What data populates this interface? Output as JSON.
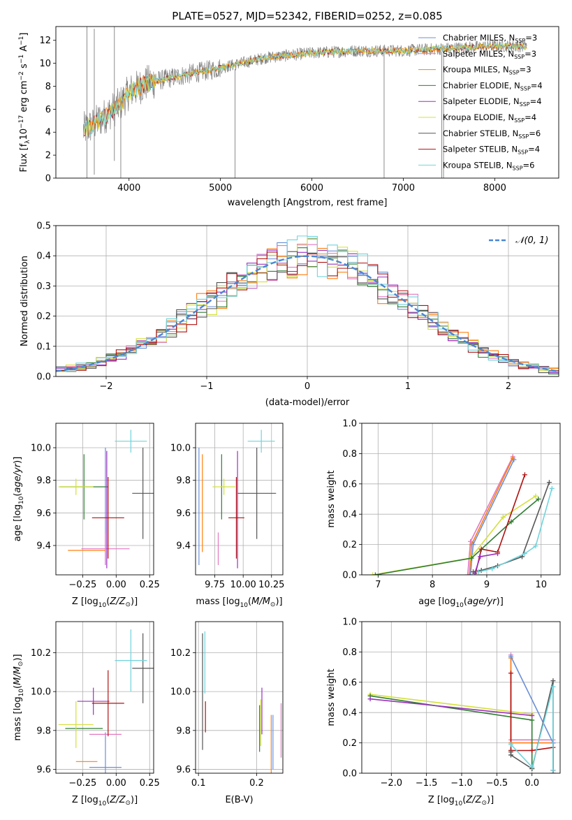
{
  "figure_title": "PLATE=0527, MJD=52342, FIBERID=0252, z=0.085",
  "colors": {
    "Chabrier MILES": "#6b8fd6",
    "Salpeter MILES": "#e377c2",
    "Kroupa MILES": "#ff7f0e",
    "Chabrier ELODIE": "#2f7d32",
    "Salpeter ELODIE": "#9b30c0",
    "Kroupa ELODIE": "#d4e03a",
    "Chabrier STELIB": "#555555",
    "Salpeter STELIB": "#b01010",
    "Kroupa STELIB": "#70d4dc",
    "data": "#7f7f7f",
    "normal": "#4a86d4"
  },
  "chart_data": [
    {
      "id": "spectrum",
      "type": "line",
      "title": "PLATE=0527, MJD=52342, FIBERID=0252, z=0.085",
      "xlabel": "wavelength [Angstrom, rest frame]",
      "ylabel": "Flux [f_λ 10^-17 erg cm^-2 s^-1 A^-1]",
      "xlim": [
        3200,
        8700
      ],
      "ylim": [
        0,
        13.2
      ],
      "xticks": [
        "4000",
        "5000",
        "6000",
        "7000",
        "8000"
      ],
      "yticks": [
        "0",
        "2",
        "4",
        "6",
        "8",
        "10",
        "12"
      ],
      "grid": false,
      "legend_position": "upper-right",
      "legend": [
        {
          "model": "Chabrier MILES",
          "n": "3"
        },
        {
          "model": "Salpeter MILES",
          "n": "3"
        },
        {
          "model": "Kroupa MILES",
          "n": "3"
        },
        {
          "model": "Chabrier ELODIE",
          "n": "4"
        },
        {
          "model": "Salpeter ELODIE",
          "n": "4"
        },
        {
          "model": "Kroupa ELODIE",
          "n": "4"
        },
        {
          "model": "Chabrier STELIB",
          "n": "6"
        },
        {
          "model": "Salpeter STELIB",
          "n": "4"
        },
        {
          "model": "Kroupa STELIB",
          "n": "6"
        }
      ],
      "continuum": {
        "x": [
          3500,
          3600,
          3700,
          3800,
          3900,
          4000,
          4200,
          4500,
          5000,
          5500,
          6000,
          6500,
          7000,
          7500,
          8000,
          8300
        ],
        "y": [
          4.2,
          4.6,
          5.2,
          5.8,
          6.4,
          7.5,
          8.3,
          8.8,
          9.6,
          10.5,
          10.9,
          11.1,
          11.1,
          11.3,
          11.5,
          11.5
        ]
      },
      "spikes": [
        {
          "x": 3540,
          "y0": 0,
          "y1": 13.2
        },
        {
          "x": 3620,
          "y0": 0.3,
          "y1": 13.0
        },
        {
          "x": 3840,
          "y0": 1.5,
          "y1": 13.2
        },
        {
          "x": 5160,
          "y0": 0,
          "y1": 9.5
        },
        {
          "x": 6790,
          "y0": 0,
          "y1": 11.0
        },
        {
          "x": 7420,
          "y0": 0,
          "y1": 11.0
        },
        {
          "x": 7440,
          "y0": 0,
          "y1": 11.3
        },
        {
          "x": 3910,
          "y0": 0,
          "y1": 6.2
        }
      ]
    },
    {
      "id": "residual_hist",
      "type": "histogram",
      "xlabel": "(data-model)/error",
      "ylabel": "Normed distribution",
      "xlim": [
        -2.5,
        2.5
      ],
      "ylim": [
        0,
        0.5
      ],
      "xticks": [
        "−2",
        "−1",
        "0",
        "1",
        "2"
      ],
      "yticks": [
        "0.0",
        "0.1",
        "0.2",
        "0.3",
        "0.4",
        "0.5"
      ],
      "grid": true,
      "legend_position": "upper-right",
      "legend": "𝒩(0, 1)",
      "bins": {
        "start": -2.5,
        "width": 0.1
      }
    },
    {
      "id": "age_vs_Z",
      "type": "errorbar",
      "xlabel": "Z [log10(Z/Z⊙)]",
      "ylabel": "age [log10(age/yr)]",
      "xlim": [
        -0.45,
        0.28
      ],
      "ylim": [
        9.22,
        10.15
      ],
      "xticks": [
        "−0.25",
        "0.00",
        "0.25"
      ],
      "yticks": [
        "9.4",
        "9.6",
        "9.8",
        "10.0"
      ],
      "grid": true,
      "points": [
        {
          "model": "Chabrier MILES",
          "x": -0.08,
          "xerr": 0.0,
          "y": 9.64,
          "yerr": 0.36
        },
        {
          "model": "Salpeter MILES",
          "x": -0.08,
          "xerr": 0.18,
          "y": 9.38,
          "yerr": 0.1
        },
        {
          "model": "Kroupa MILES",
          "x": -0.22,
          "xerr": 0.14,
          "y": 9.37,
          "yerr": 0.0
        },
        {
          "model": "Chabrier ELODIE",
          "x": -0.24,
          "xerr": 0.18,
          "y": 9.76,
          "yerr": 0.2
        },
        {
          "model": "Salpeter ELODIE",
          "x": -0.07,
          "xerr": 0.0,
          "y": 9.62,
          "yerr": 0.36
        },
        {
          "model": "Kroupa ELODIE",
          "x": -0.3,
          "xerr": 0.13,
          "y": 9.76,
          "yerr": 0.05
        },
        {
          "model": "Chabrier STELIB",
          "x": 0.2,
          "xerr": 0.08,
          "y": 9.72,
          "yerr": 0.28
        },
        {
          "model": "Salpeter STELIB",
          "x": -0.06,
          "xerr": 0.12,
          "y": 9.57,
          "yerr": 0.25
        },
        {
          "model": "Kroupa STELIB",
          "x": 0.11,
          "xerr": 0.12,
          "y": 10.04,
          "yerr": 0.07
        }
      ]
    },
    {
      "id": "age_vs_mass",
      "type": "errorbar",
      "xlabel": "mass [log10(M/M⊙)]",
      "ylabel": "",
      "xlim": [
        9.58,
        10.35
      ],
      "ylim": [
        9.22,
        10.15
      ],
      "xticks": [
        "9.75",
        "10.00",
        "10.25"
      ],
      "yticks": [
        "9.4",
        "9.6",
        "9.8",
        "10.0"
      ],
      "grid": true,
      "points": [
        {
          "model": "Chabrier MILES",
          "x": 9.61,
          "xerr": 0.0,
          "y": 9.64,
          "yerr": 0.36
        },
        {
          "model": "Salpeter MILES",
          "x": 9.78,
          "xerr": 0.0,
          "y": 9.38,
          "yerr": 0.1
        },
        {
          "model": "Kroupa MILES",
          "x": 9.64,
          "xerr": 0.0,
          "y": 9.66,
          "yerr": 0.3
        },
        {
          "model": "Chabrier ELODIE",
          "x": 9.81,
          "xerr": 0.0,
          "y": 9.76,
          "yerr": 0.2
        },
        {
          "model": "Salpeter ELODIE",
          "x": 9.95,
          "xerr": 0.0,
          "y": 9.62,
          "yerr": 0.36
        },
        {
          "model": "Kroupa ELODIE",
          "x": 9.83,
          "xerr": 0.1,
          "y": 9.76,
          "yerr": 0.05
        },
        {
          "model": "Chabrier STELIB",
          "x": 10.12,
          "xerr": 0.17,
          "y": 9.72,
          "yerr": 0.28
        },
        {
          "model": "Salpeter STELIB",
          "x": 9.94,
          "xerr": 0.07,
          "y": 9.57,
          "yerr": 0.25
        },
        {
          "model": "Kroupa STELIB",
          "x": 10.16,
          "xerr": 0.12,
          "y": 10.04,
          "yerr": 0.07
        }
      ]
    },
    {
      "id": "cumulative_age",
      "type": "line",
      "xlabel": "age [log10(age/yr)]",
      "ylabel": "mass weight",
      "xlim": [
        6.7,
        10.35
      ],
      "ylim": [
        0,
        1.0
      ],
      "xticks": [
        "7",
        "8",
        "9",
        "10"
      ],
      "yticks": [
        "0.0",
        "0.2",
        "0.4",
        "0.6",
        "0.8",
        "1.0"
      ],
      "grid": true,
      "series": [
        {
          "model": "Salpeter MILES",
          "x": [
            8.65,
            8.7,
            9.48
          ],
          "y": [
            0.0,
            0.22,
            0.78
          ]
        },
        {
          "model": "Kroupa MILES",
          "x": [
            8.68,
            8.72,
            9.48
          ],
          "y": [
            0.0,
            0.2,
            0.77
          ]
        },
        {
          "model": "Chabrier MILES",
          "x": [
            8.7,
            8.75,
            9.5
          ],
          "y": [
            0.0,
            0.2,
            0.76
          ]
        },
        {
          "model": "Kroupa ELODIE",
          "x": [
            6.9,
            8.7,
            9.3,
            9.9
          ],
          "y": [
            0.0,
            0.11,
            0.38,
            0.52
          ]
        },
        {
          "model": "Chabrier ELODIE",
          "x": [
            6.95,
            8.72,
            9.45,
            9.95
          ],
          "y": [
            0.0,
            0.11,
            0.35,
            0.5
          ]
        },
        {
          "model": "Salpeter STELIB",
          "x": [
            8.8,
            8.9,
            9.2,
            9.7
          ],
          "y": [
            0.02,
            0.17,
            0.15,
            0.66
          ]
        },
        {
          "model": "Salpeter ELODIE",
          "x": [
            8.78,
            8.88,
            9.2
          ],
          "y": [
            0.01,
            0.12,
            0.14
          ]
        },
        {
          "model": "Chabrier STELIB",
          "x": [
            8.75,
            8.9,
            9.2,
            9.65,
            10.15
          ],
          "y": [
            0.02,
            0.03,
            0.06,
            0.12,
            0.61
          ]
        },
        {
          "model": "Kroupa STELIB",
          "x": [
            8.85,
            9.1,
            9.7,
            9.9,
            10.2
          ],
          "y": [
            0.02,
            0.04,
            0.14,
            0.19,
            0.57
          ]
        }
      ]
    },
    {
      "id": "mass_vs_Z",
      "type": "errorbar",
      "xlabel": "Z [log10(Z/Z⊙)]",
      "ylabel": "mass [log10(M/M⊙)]",
      "xlim": [
        -0.45,
        0.28
      ],
      "ylim": [
        9.58,
        10.36
      ],
      "xticks": [
        "−0.25",
        "0.00",
        "0.25"
      ],
      "yticks": [
        "9.6",
        "9.8",
        "10.0",
        "10.2"
      ],
      "grid": true,
      "points": [
        {
          "model": "Chabrier MILES",
          "x": -0.08,
          "xerr": 0.12,
          "y": 9.61,
          "yerr": 0.18
        },
        {
          "model": "Salpeter MILES",
          "x": -0.08,
          "xerr": 0.12,
          "y": 9.78,
          "yerr": 0.0
        },
        {
          "model": "Kroupa MILES",
          "x": -0.22,
          "xerr": 0.08,
          "y": 9.64,
          "yerr": 0.0
        },
        {
          "model": "Chabrier ELODIE",
          "x": -0.24,
          "xerr": 0.14,
          "y": 9.81,
          "yerr": 0.0
        },
        {
          "model": "Salpeter ELODIE",
          "x": -0.17,
          "xerr": 0.12,
          "y": 9.95,
          "yerr": 0.07
        },
        {
          "model": "Kroupa ELODIE",
          "x": -0.3,
          "xerr": 0.13,
          "y": 9.83,
          "yerr": 0.12
        },
        {
          "model": "Chabrier STELIB",
          "x": 0.2,
          "xerr": 0.08,
          "y": 10.12,
          "yerr": 0.18
        },
        {
          "model": "Salpeter STELIB",
          "x": -0.06,
          "xerr": 0.12,
          "y": 9.94,
          "yerr": 0.17
        },
        {
          "model": "Kroupa STELIB",
          "x": 0.11,
          "xerr": 0.12,
          "y": 10.16,
          "yerr": 0.16
        }
      ]
    },
    {
      "id": "mass_vs_ebv",
      "type": "errorbar",
      "xlabel": "E(B-V)",
      "ylabel": "",
      "xlim": [
        0.095,
        0.245
      ],
      "ylim": [
        9.58,
        10.36
      ],
      "xticks": [
        "0.1",
        "0.2"
      ],
      "yticks": [
        "9.6",
        "9.8",
        "10.0",
        "10.2"
      ],
      "grid": true,
      "points": [
        {
          "model": "Chabrier MILES",
          "x": 0.228,
          "xerr": 0.0,
          "y": 9.74,
          "yerr": 0.14
        },
        {
          "model": "Salpeter MILES",
          "x": 0.242,
          "xerr": 0.0,
          "y": 9.8,
          "yerr": 0.14
        },
        {
          "model": "Kroupa MILES",
          "x": 0.225,
          "xerr": 0.0,
          "y": 9.73,
          "yerr": 0.15
        },
        {
          "model": "Chabrier ELODIE",
          "x": 0.205,
          "xerr": 0.0,
          "y": 9.81,
          "yerr": 0.12
        },
        {
          "model": "Salpeter ELODIE",
          "x": 0.209,
          "xerr": 0.0,
          "y": 9.9,
          "yerr": 0.12
        },
        {
          "model": "Kroupa ELODIE",
          "x": 0.207,
          "xerr": 0.0,
          "y": 9.84,
          "yerr": 0.12
        },
        {
          "model": "Chabrier STELIB",
          "x": 0.107,
          "xerr": 0.0,
          "y": 10.0,
          "yerr": 0.3
        },
        {
          "model": "Salpeter STELIB",
          "x": 0.112,
          "xerr": 0.0,
          "y": 9.87,
          "yerr": 0.08
        },
        {
          "model": "Kroupa STELIB",
          "x": 0.111,
          "xerr": 0.0,
          "y": 10.15,
          "yerr": 0.16
        }
      ]
    },
    {
      "id": "cumulative_Z",
      "type": "line",
      "xlabel": "Z [log10(Z/Z⊙)]",
      "ylabel": "mass weight",
      "xlim": [
        -2.42,
        0.4
      ],
      "ylim": [
        0,
        1.0
      ],
      "xticks": [
        "−2.0",
        "−1.5",
        "−1.0",
        "−0.5",
        "0.0"
      ],
      "yticks": [
        "0.0",
        "0.2",
        "0.4",
        "0.6",
        "0.8",
        "1.0"
      ],
      "grid": true,
      "series": [
        {
          "model": "Salpeter MILES",
          "x": [
            0.3,
            0.3,
            -0.3,
            -0.3
          ],
          "y": [
            0.02,
            0.22,
            0.22,
            0.78
          ]
        },
        {
          "model": "Kroupa MILES",
          "x": [
            0.3,
            0.3,
            -0.3,
            -0.3
          ],
          "y": [
            0.0,
            0.2,
            0.2,
            0.76
          ]
        },
        {
          "model": "Chabrier MILES",
          "x": [
            0.3,
            0.3,
            -0.3
          ],
          "y": [
            0.0,
            0.2,
            0.77
          ]
        },
        {
          "model": "Kroupa ELODIE",
          "x": [
            0.0,
            0.0,
            -2.3
          ],
          "y": [
            0.03,
            0.39,
            0.52
          ]
        },
        {
          "model": "Chabrier ELODIE",
          "x": [
            0.0,
            0.0,
            -2.3
          ],
          "y": [
            0.03,
            0.35,
            0.51
          ]
        },
        {
          "model": "Salpeter ELODIE",
          "x": [
            0.0,
            -2.3
          ],
          "y": [
            0.38,
            0.49
          ]
        },
        {
          "model": "Salpeter STELIB",
          "x": [
            0.3,
            0.3,
            0.0,
            -0.3,
            -0.3
          ],
          "y": [
            0.02,
            0.17,
            0.15,
            0.15,
            0.66
          ]
        },
        {
          "model": "Chabrier STELIB",
          "x": [
            0.3,
            0.3,
            0.0,
            -0.3,
            -0.3
          ],
          "y": [
            0.02,
            0.61,
            0.03,
            0.12,
            0.14
          ]
        },
        {
          "model": "Kroupa STELIB",
          "x": [
            0.3,
            0.3,
            0.0,
            -0.3
          ],
          "y": [
            0.02,
            0.57,
            0.04,
            0.19
          ]
        }
      ]
    }
  ]
}
